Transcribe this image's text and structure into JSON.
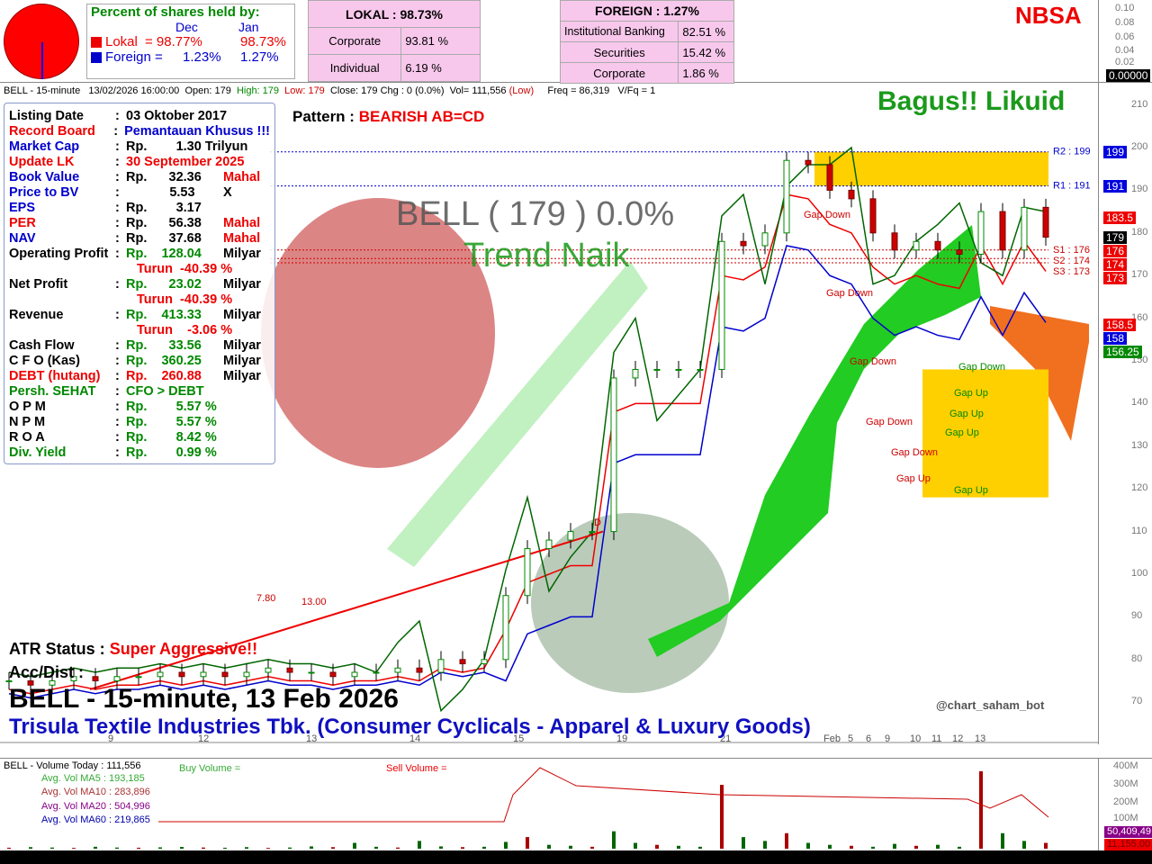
{
  "header": {
    "pie": {
      "lokal_pct": 98.73,
      "foreign_pct": 1.27,
      "colors": {
        "lokal": "#ff0000",
        "foreign": "#0000ff"
      }
    },
    "shares_title": "Percent of shares held by:",
    "col_dec": "Dec",
    "col_jan": "Jan",
    "lokal_label": "Lokal",
    "lokal_dec": "= 98.77%",
    "lokal_jan": "98.73%",
    "foreign_label": "Foreign =",
    "foreign_dec": "1.23%",
    "foreign_jan": "1.27%",
    "lokal_box": {
      "title": "LOKAL : 98.73%",
      "rows": [
        [
          "Corporate",
          "93.81 %"
        ],
        [
          "Individual",
          "6.19 %"
        ]
      ]
    },
    "foreign_box": {
      "title": "FOREIGN : 1.27%",
      "rows": [
        [
          "Institutional Banking",
          "82.51 %"
        ],
        [
          "Securities",
          "15.42 %"
        ],
        [
          "Corporate",
          "1.86 %"
        ]
      ]
    },
    "brand": "NBSA",
    "top_axis": [
      "0.10",
      "0.08",
      "0.06",
      "0.04",
      "0.02"
    ],
    "top_tag": "0.00000"
  },
  "ohlc": {
    "symbol": "BELL - 15-minute",
    "datetime": "13/02/2026 16:00:00",
    "open": "Open: 179",
    "high": "High: 179",
    "low": "Low: 179",
    "close": "Close: 179 Chg : 0 (0.0%)",
    "vol": "Vol= 111,556",
    "vol_flag": "(Low)",
    "freq": "Freq = 86,319",
    "vfq": "V/Fq = 1"
  },
  "info": [
    {
      "k": "Listing Date",
      "v": "03 Oktober 2017",
      "kc": "#000",
      "vc": "#000"
    },
    {
      "k": "Record Board",
      "v": "Pemantauan Khusus !!!",
      "kc": "#e00",
      "vc": "#0000cc"
    },
    {
      "k": "Market Cap",
      "v": "Rp.        1.30 Trilyun",
      "kc": "#0000cc",
      "vc": "#000"
    },
    {
      "k": "Update LK",
      "v": "30 September 2025",
      "kc": "#e00",
      "vc": "#e00"
    },
    {
      "k": "Book Value",
      "v": "Rp.      32.36",
      "x": "Mahal",
      "kc": "#0000cc",
      "vc": "#000",
      "xc": "#e00"
    },
    {
      "k": "Price to BV",
      "v": "            5.53",
      "x": "X",
      "kc": "#0000cc",
      "vc": "#000",
      "xc": "#000"
    },
    {
      "k": "EPS",
      "v": "Rp.        3.17",
      "kc": "#0000cc",
      "vc": "#000"
    },
    {
      "k": "PER",
      "v": "Rp.      56.38",
      "x": "Mahal",
      "kc": "#e00",
      "vc": "#000",
      "xc": "#e00"
    },
    {
      "k": "NAV",
      "v": "Rp.      37.68",
      "x": "Mahal",
      "kc": "#0000cc",
      "vc": "#000",
      "xc": "#e00"
    },
    {
      "k": "Operating Profit",
      "v": "Rp.    128.04",
      "x": "Milyar",
      "kc": "#000",
      "vc": "#080",
      "xc": "#000"
    },
    {
      "k": "",
      "v": "Turun  -40.39 %",
      "kc": "#000",
      "vc": "#e00"
    },
    {
      "k": "Net Profit",
      "v": "Rp.      23.02",
      "x": "Milyar",
      "kc": "#000",
      "vc": "#080",
      "xc": "#000"
    },
    {
      "k": "",
      "v": "Turun  -40.39 %",
      "kc": "#000",
      "vc": "#e00"
    },
    {
      "k": "Revenue",
      "v": "Rp.    413.33",
      "x": "Milyar",
      "kc": "#000",
      "vc": "#080",
      "xc": "#000"
    },
    {
      "k": "",
      "v": "Turun    -3.06 %",
      "kc": "#000",
      "vc": "#e00"
    },
    {
      "k": "Cash Flow",
      "v": "Rp.      33.56",
      "x": "Milyar",
      "kc": "#000",
      "vc": "#080",
      "xc": "#000"
    },
    {
      "k": "C F O  (Kas)",
      "v": "Rp.    360.25",
      "x": "Milyar",
      "kc": "#000",
      "vc": "#080",
      "xc": "#000"
    },
    {
      "k": "DEBT (hutang)",
      "v": "Rp.    260.88",
      "x": "Milyar",
      "kc": "#e00",
      "vc": "#e00",
      "xc": "#000"
    },
    {
      "k": "Persh. SEHAT",
      "v": "CFO > DEBT",
      "kc": "#080",
      "vc": "#080"
    },
    {
      "k": "O P M",
      "v": "Rp.        5.57 %",
      "kc": "#000",
      "vc": "#080"
    },
    {
      "k": "N P M",
      "v": "Rp.        5.57 %",
      "kc": "#000",
      "vc": "#080"
    },
    {
      "k": "R O A",
      "v": "Rp.        8.42 %",
      "kc": "#000",
      "vc": "#080"
    },
    {
      "k": "Div. Yield",
      "v": "Rp.        0.99 %",
      "kc": "#080",
      "vc": "#080"
    }
  ],
  "chart": {
    "pattern_label": "Pattern :",
    "pattern": "BEARISH AB=CD",
    "liquidity": "Bagus!! Likuid",
    "watermark_price": "BELL ( 179 )  0.0%",
    "trend": "Trend Naik",
    "atr_label": "ATR Status :",
    "atr": "Super Aggressive!!",
    "accdist": "Acc/Dist :",
    "title": "BELL - 15-minute, 13 Feb 2026",
    "company": "Trisula Textile Industries Tbk. (Consumer Cyclicals - Apparel & Luxury Goods)",
    "credit": "@chart_saham_bot",
    "levels": {
      "r2": "R2 : 199",
      "r1": "R1 : 191",
      "s1": "S1 : 176",
      "s2": "S2 : 174",
      "s3": "S3 : 173"
    },
    "annotations": [
      "Gap Down",
      "Gap Down",
      "Gap Down",
      "Gap Down",
      "Gap Down",
      "Gap Down",
      "Gap Up",
      "Gap Up",
      "Gap Up",
      "Gap Up",
      "Gap Up",
      "7.80",
      "13.00",
      "D"
    ]
  },
  "chart_data": {
    "type": "line",
    "ylim": [
      65,
      212
    ],
    "y_ticks": [
      210,
      200,
      190,
      180,
      170,
      160,
      150,
      140,
      130,
      120,
      110,
      100,
      90,
      80,
      70
    ],
    "x_ticks": [
      "9",
      "12",
      "13",
      "14",
      "15",
      "19",
      "21",
      "Feb",
      "5",
      "6",
      "9",
      "10",
      "11",
      "12",
      "13"
    ],
    "close": [
      75,
      74,
      75,
      76,
      75,
      76,
      76,
      77,
      76,
      77,
      76,
      77,
      78,
      77,
      77,
      76,
      77,
      77,
      78,
      77,
      80,
      79,
      80,
      95,
      106,
      108,
      110,
      110,
      146,
      148,
      148,
      148,
      148,
      178,
      177,
      180,
      197,
      196,
      190,
      188,
      180,
      176,
      178,
      176,
      175,
      185,
      176,
      186,
      179
    ],
    "price_tags": [
      {
        "v": "199",
        "c": "#0000dd"
      },
      {
        "v": "191",
        "c": "#0000dd"
      },
      {
        "v": "183.5",
        "c": "#ee0000"
      },
      {
        "v": "179",
        "c": "#000000"
      },
      {
        "v": "176",
        "c": "#ee0000"
      },
      {
        "v": "174",
        "c": "#ee0000"
      },
      {
        "v": "173",
        "c": "#ee0000"
      },
      {
        "v": "158.5",
        "c": "#ee0000"
      },
      {
        "v": "158",
        "c": "#0000dd"
      },
      {
        "v": "156.25",
        "c": "#008800"
      }
    ]
  },
  "volume": {
    "title": "BELL -  Volume Today : 111,556",
    "buy": "Buy Volume =",
    "sell": "Sell Volume =",
    "ma5": "Avg. Vol MA5    : 193,185",
    "ma10": "Avg. Vol MA10 : 283,896",
    "ma20": "Avg. Vol MA20 : 504,996",
    "ma60": "Avg. Vol MA60 : 219,865",
    "axis": [
      "400M",
      "300M",
      "200M",
      "100M"
    ],
    "tag1": "50,409,49",
    "tag2": "11,155,00",
    "bars_m": [
      5,
      8,
      6,
      4,
      10,
      6,
      5,
      7,
      9,
      6,
      5,
      8,
      4,
      6,
      12,
      8,
      30,
      10,
      6,
      40,
      12,
      8,
      10,
      35,
      60,
      20,
      15,
      10,
      90,
      30,
      20,
      15,
      10,
      330,
      60,
      40,
      80,
      30,
      20,
      15,
      10,
      25,
      15,
      20,
      10,
      400,
      80,
      40,
      30
    ]
  }
}
